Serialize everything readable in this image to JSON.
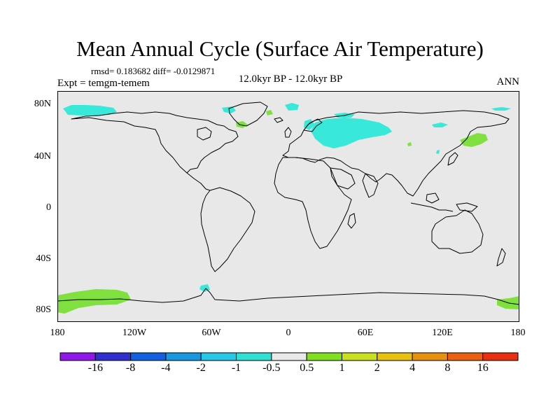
{
  "map": {
    "title": "Mean Annual Cycle (Surface Air Temperature)",
    "stats_text": "rmsd= 0.183682 diff= -0.0129871",
    "experiment": "Expt = temgm-temem",
    "period": "12.0kyr BP - 12.0kyr BP",
    "season": "ANN",
    "lat_labels": [
      "80N",
      "40N",
      "0",
      "40S",
      "80S"
    ],
    "lon_labels": [
      "180",
      "120W",
      "60W",
      "0",
      "60E",
      "120E",
      "180"
    ],
    "colors": {
      "background": "#e8e8e8",
      "coast": "#000000",
      "neg_small": "#38e8d8",
      "pos_small": "#80e040"
    },
    "legend": {
      "colors": [
        "#9018e8",
        "#3030d0",
        "#1060e0",
        "#1898e0",
        "#28c8e8",
        "#30e0d0",
        "#e8e8e8",
        "#80e020",
        "#c8e020",
        "#e8c010",
        "#e89010",
        "#e86010",
        "#e83010"
      ],
      "labels": [
        "-16",
        "-8",
        "-4",
        "-2",
        "-1",
        "-0.5",
        "0.5",
        "1",
        "2",
        "4",
        "8",
        "16"
      ]
    }
  }
}
